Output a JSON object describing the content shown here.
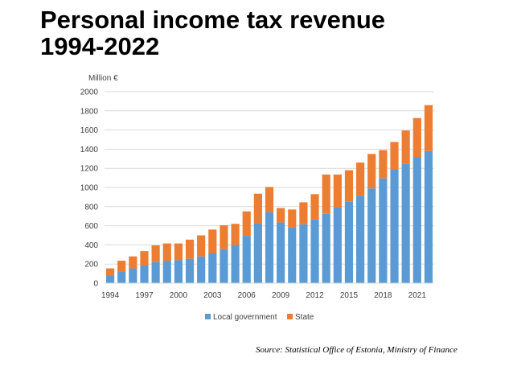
{
  "title_line1": "Personal income tax revenue",
  "title_line2": "1994-2022",
  "source": "Source: Statistical Office of Estonia, Ministry of Finance",
  "colors": {
    "local": "#5b9bd5",
    "state": "#ed7d31",
    "grid": "#d9d9d9",
    "text": "#404040"
  },
  "chart_data": {
    "type": "bar",
    "stacked": true,
    "ylabel": "Million €",
    "ylim": [
      0,
      2000
    ],
    "yticks": [
      0,
      200,
      400,
      600,
      800,
      1000,
      1200,
      1400,
      1600,
      1800,
      2000
    ],
    "grid": true,
    "legend": "bottom",
    "categories": [
      1994,
      1995,
      1996,
      1997,
      1998,
      1999,
      2000,
      2001,
      2002,
      2003,
      2004,
      2005,
      2006,
      2007,
      2008,
      2009,
      2010,
      2011,
      2012,
      2013,
      2014,
      2015,
      2016,
      2017,
      2018,
      2019,
      2020,
      2021,
      2022
    ],
    "xtick_labels": [
      "1994",
      "1997",
      "2000",
      "2003",
      "2006",
      "2009",
      "2012",
      "2015",
      "2018",
      "2021"
    ],
    "series": [
      {
        "name": "Local government",
        "values": [
          80,
          125,
          155,
          185,
          220,
          235,
          240,
          255,
          280,
          315,
          355,
          400,
          495,
          625,
          740,
          635,
          585,
          615,
          665,
          725,
          790,
          855,
          915,
          990,
          1095,
          1185,
          1245,
          1315,
          1380
        ]
      },
      {
        "name": "State",
        "values": [
          75,
          110,
          125,
          150,
          175,
          180,
          175,
          200,
          220,
          245,
          250,
          220,
          255,
          310,
          265,
          150,
          185,
          230,
          265,
          410,
          345,
          325,
          345,
          360,
          295,
          290,
          350,
          410,
          480
        ]
      }
    ]
  }
}
